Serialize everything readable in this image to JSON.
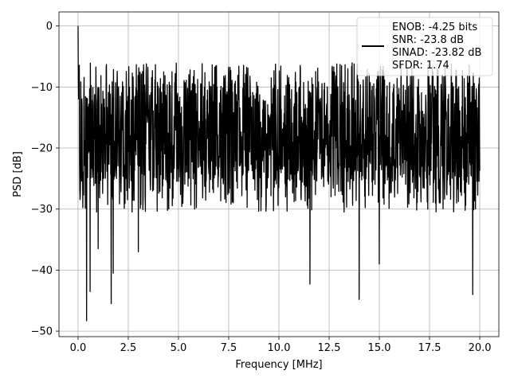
{
  "chart_data": {
    "type": "line",
    "title": "",
    "xlabel": "Frequency [MHz]",
    "ylabel": "PSD [dB]",
    "xlim": [
      -0.95,
      20.95
    ],
    "ylim": [
      -50.9,
      2.3
    ],
    "grid": true,
    "legend_position": "top-right",
    "x_ticks": [
      {
        "value": 0.0,
        "label": "0.0"
      },
      {
        "value": 2.5,
        "label": "2.5"
      },
      {
        "value": 5.0,
        "label": "5.0"
      },
      {
        "value": 7.5,
        "label": "7.5"
      },
      {
        "value": 10.0,
        "label": "10.0"
      },
      {
        "value": 12.5,
        "label": "12.5"
      },
      {
        "value": 15.0,
        "label": "15.0"
      },
      {
        "value": 17.5,
        "label": "17.5"
      },
      {
        "value": 20.0,
        "label": "20.0"
      }
    ],
    "y_ticks": [
      {
        "value": 0,
        "label": "0"
      },
      {
        "value": -10,
        "label": "−10"
      },
      {
        "value": -20,
        "label": "−20"
      },
      {
        "value": -30,
        "label": "−30"
      },
      {
        "value": -40,
        "label": "−40"
      },
      {
        "value": -50,
        "label": "−50"
      }
    ],
    "legend_lines": [
      "ENOB: -4.25 bits",
      "SNR: -23.8 dB",
      "SINAD: -23.82 dB",
      "SFDR: 1.74"
    ],
    "series": [
      {
        "color": "#000000",
        "x_start": 0.0,
        "x_end": 20.0,
        "peak": {
          "x": 0.0,
          "y": 0.0
        },
        "upper_envelope": -7.5,
        "lower_envelope": -27.5,
        "notable_minima": [
          {
            "x": 0.42,
            "y": -48.3
          },
          {
            "x": 0.6,
            "y": -43.5
          },
          {
            "x": 1.0,
            "y": -36.5
          },
          {
            "x": 1.65,
            "y": -45.5
          },
          {
            "x": 1.75,
            "y": -40.5
          },
          {
            "x": 3.0,
            "y": -37.0
          },
          {
            "x": 11.55,
            "y": -42.3
          },
          {
            "x": 14.0,
            "y": -44.8
          },
          {
            "x": 15.0,
            "y": -39.0
          },
          {
            "x": 19.65,
            "y": -44.0
          }
        ]
      }
    ]
  }
}
